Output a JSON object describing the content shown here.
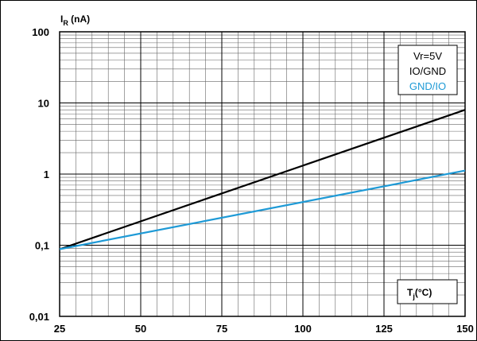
{
  "chart_data": {
    "type": "line",
    "ylabel": {
      "main": "I",
      "sub": "R",
      "rest": " (nA)"
    },
    "xlabel": {
      "main": "T",
      "sub": "j",
      "rest": "(°C)"
    },
    "x_ticks": [
      "25",
      "50",
      "75",
      "100",
      "125",
      "150"
    ],
    "y_ticks": [
      "0,01",
      "0,1",
      "1",
      "10",
      "100"
    ],
    "xlim": [
      25,
      150
    ],
    "ylim": [
      0.01,
      100
    ],
    "y_scale": "log",
    "grid": true,
    "legend_title": "Vr=5V",
    "legend_position": "top-right",
    "series": [
      {
        "name": "IO/GND",
        "color": "#000000",
        "x": [
          25,
          150
        ],
        "y": [
          0.088,
          8.0
        ]
      },
      {
        "name": "GND/IO",
        "color": "#1e9ad6",
        "x": [
          25,
          150
        ],
        "y": [
          0.088,
          1.12
        ]
      }
    ]
  }
}
